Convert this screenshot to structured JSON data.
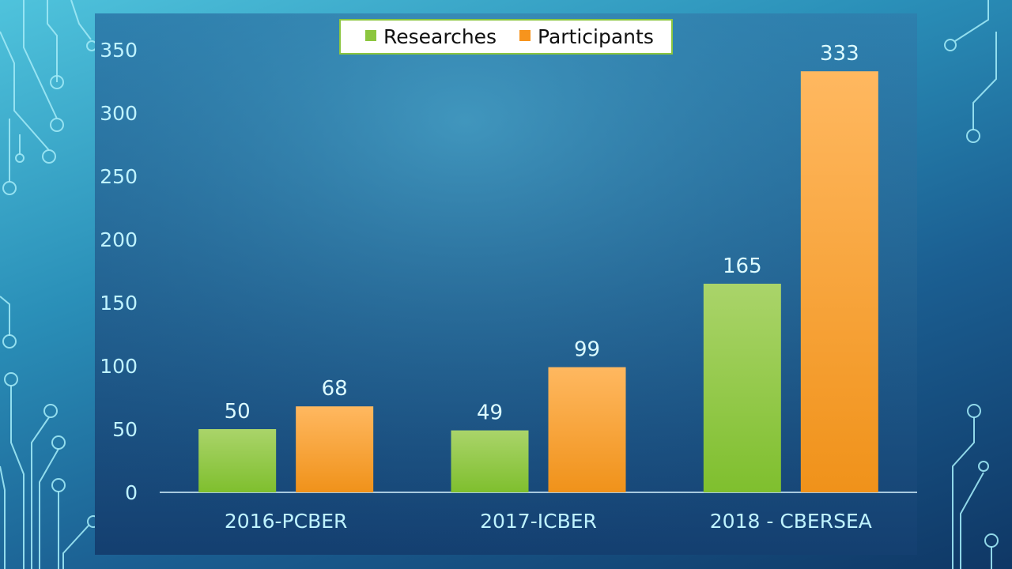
{
  "colors": {
    "researches": "#8cc63f",
    "participants": "#f7941d",
    "axis_text": "#bff3ff",
    "legend_border": "#8cc63f"
  },
  "chart_data": {
    "type": "bar",
    "categories": [
      "2016-PCBER",
      "2017-ICBER",
      "2018 - CBERSEA"
    ],
    "series": [
      {
        "name": "Researches",
        "values": [
          50,
          49,
          165
        ]
      },
      {
        "name": "Participants",
        "values": [
          68,
          99,
          333
        ]
      }
    ],
    "ylim": [
      0,
      350
    ],
    "yticks": [
      "0",
      "50",
      "100",
      "150",
      "200",
      "250",
      "300",
      "350"
    ],
    "legend_position": "top-center",
    "grid": false
  }
}
